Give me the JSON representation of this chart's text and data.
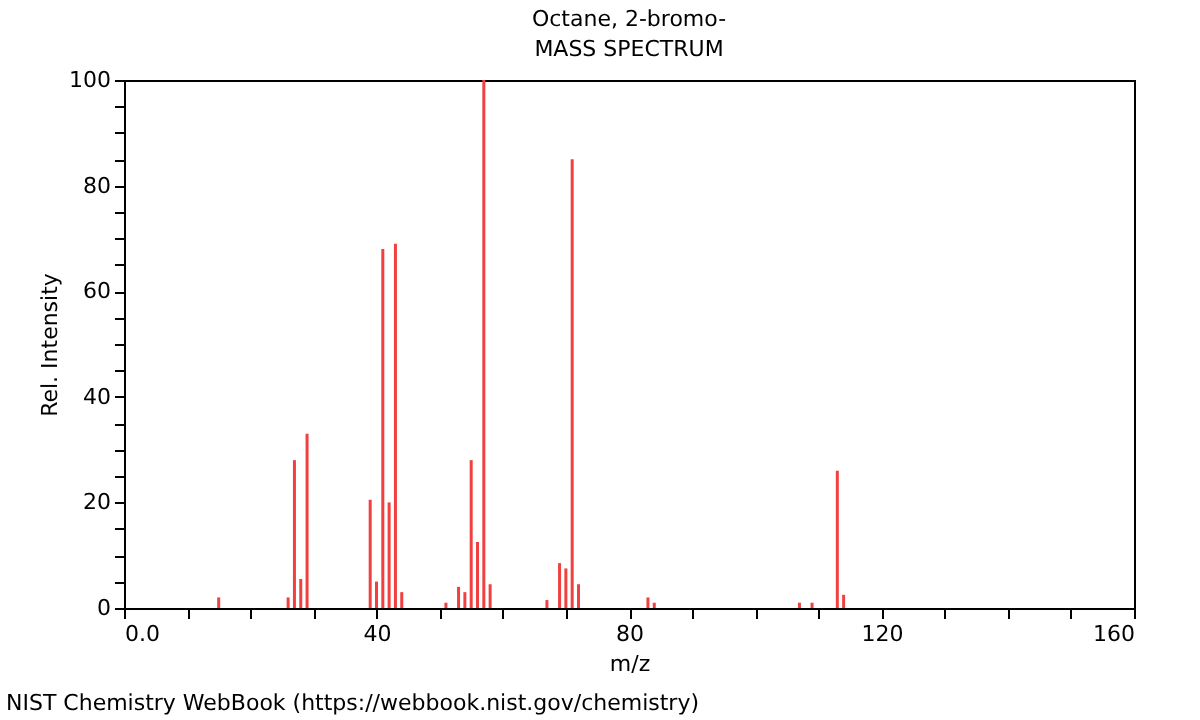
{
  "chart_data": {
    "type": "bar",
    "title": "Octane, 2-bromo-",
    "subtitle": "MASS SPECTRUM",
    "xlabel": "m/z",
    "ylabel": "Rel. Intensity",
    "annotations": [
      "NIST Chemistry WebBook (https://webbook.nist.gov/chemistry)"
    ],
    "x": [
      15,
      26,
      27,
      28,
      29,
      39,
      40,
      41,
      42,
      43,
      44,
      51,
      53,
      54,
      55,
      56,
      57,
      58,
      67,
      69,
      70,
      71,
      72,
      83,
      84,
      107,
      109,
      113,
      114
    ],
    "values": [
      2,
      2,
      28,
      5.5,
      33,
      20.5,
      5,
      68,
      20,
      69,
      3,
      1,
      4,
      3,
      28,
      12.5,
      100,
      4.5,
      1.5,
      8.5,
      7.5,
      85,
      4.5,
      2,
      1,
      1,
      1,
      26,
      2.5
    ],
    "color": "#f04040",
    "xlim": [
      0,
      160
    ],
    "xticks": [
      {
        "value": 0,
        "label": "0.0"
      },
      {
        "value": 10,
        "label": null
      },
      {
        "value": 20,
        "label": null
      },
      {
        "value": 30,
        "label": null
      },
      40,
      {
        "value": 50,
        "label": null
      },
      {
        "value": 60,
        "label": null
      },
      {
        "value": 70,
        "label": null
      },
      80,
      {
        "value": 90,
        "label": null
      },
      {
        "value": 100,
        "label": null
      },
      {
        "value": 110,
        "label": null
      },
      120,
      {
        "value": 130,
        "label": null
      },
      {
        "value": 140,
        "label": null
      },
      {
        "value": 150,
        "label": null
      },
      160
    ],
    "ylim": [
      0,
      100
    ],
    "yticks": [
      0,
      {
        "value": 5,
        "label": null
      },
      {
        "value": 10,
        "label": null
      },
      {
        "value": 15,
        "label": null
      },
      20,
      {
        "value": 25,
        "label": null
      },
      {
        "value": 30,
        "label": null
      },
      {
        "value": 35,
        "label": null
      },
      40,
      {
        "value": 45,
        "label": null
      },
      {
        "value": 50,
        "label": null
      },
      {
        "value": 55,
        "label": null
      },
      60,
      {
        "value": 65,
        "label": null
      },
      {
        "value": 70,
        "label": null
      },
      {
        "value": 75,
        "label": null
      },
      80,
      {
        "value": 85,
        "label": null
      },
      {
        "value": 90,
        "label": null
      },
      {
        "value": 95,
        "label": null
      },
      100
    ],
    "grid": false
  }
}
